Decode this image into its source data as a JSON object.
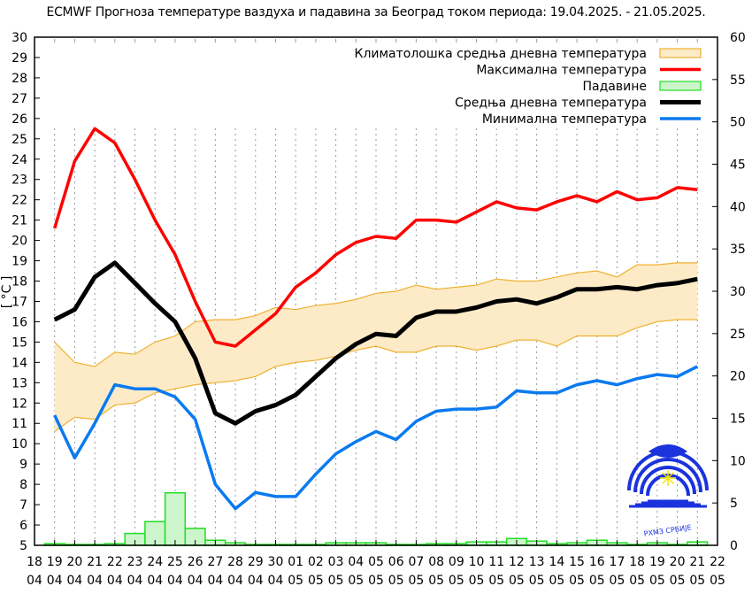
{
  "title": "ECMWF Прогноза температуре ваздуха и падавина за Београд током периода: 19.04.2025. - 21.05.2025.",
  "colors": {
    "max": "#ff0000",
    "mean": "#000000",
    "min": "#0a7af0",
    "clim_fill": "#fdebc8",
    "clim_edge": "#f0b030",
    "precip_fill": "#ccf5cc",
    "precip_edge": "#22dd22",
    "grid": "#9a9a9a",
    "logo": "#1a33dd"
  },
  "legend": {
    "items": [
      {
        "label": "Климатолошка средња дневна температура",
        "kind": "box",
        "fill": "#fdebc8",
        "edge": "#f0b030"
      },
      {
        "label": "Максимална температура",
        "kind": "line",
        "color": "#ff0000"
      },
      {
        "label": "Падавине",
        "kind": "box",
        "fill": "#ccf5cc",
        "edge": "#22dd22"
      },
      {
        "label": "Средња дневна температура",
        "kind": "line",
        "color": "#000000"
      },
      {
        "label": "Минимална температура",
        "kind": "line",
        "color": "#0a7af0"
      }
    ]
  },
  "logo": {
    "caption": "РХМЗ СРБИЈЕ",
    "icon": "rhmz-logo-icon"
  },
  "chart_data": {
    "type": "line",
    "title": "ECMWF Прогноза температуре ваздуха и падавина за Београд током периода: 19.04.2025. - 21.05.2025.",
    "xlabel": "",
    "ylabel": "[ °C ]",
    "y2label": "",
    "ylim": [
      5,
      30
    ],
    "y2lim": [
      0,
      60
    ],
    "yticks": [
      5,
      6,
      7,
      8,
      9,
      10,
      11,
      12,
      13,
      14,
      15,
      16,
      17,
      18,
      19,
      20,
      21,
      22,
      23,
      24,
      25,
      26,
      27,
      28,
      29,
      30
    ],
    "y2ticks": [
      0,
      5,
      10,
      15,
      20,
      25,
      30,
      35,
      40,
      45,
      50,
      55,
      60
    ],
    "xtick_labels": [
      [
        "18",
        "04"
      ],
      [
        "19",
        "04"
      ],
      [
        "20",
        "04"
      ],
      [
        "21",
        "04"
      ],
      [
        "22",
        "04"
      ],
      [
        "23",
        "04"
      ],
      [
        "24",
        "04"
      ],
      [
        "25",
        "04"
      ],
      [
        "26",
        "04"
      ],
      [
        "27",
        "04"
      ],
      [
        "28",
        "04"
      ],
      [
        "29",
        "04"
      ],
      [
        "30",
        "04"
      ],
      [
        "01",
        "05"
      ],
      [
        "02",
        "05"
      ],
      [
        "03",
        "05"
      ],
      [
        "04",
        "05"
      ],
      [
        "05",
        "05"
      ],
      [
        "06",
        "05"
      ],
      [
        "07",
        "05"
      ],
      [
        "08",
        "05"
      ],
      [
        "09",
        "05"
      ],
      [
        "10",
        "05"
      ],
      [
        "11",
        "05"
      ],
      [
        "12",
        "05"
      ],
      [
        "13",
        "05"
      ],
      [
        "14",
        "05"
      ],
      [
        "15",
        "05"
      ],
      [
        "16",
        "05"
      ],
      [
        "17",
        "05"
      ],
      [
        "18",
        "05"
      ],
      [
        "19",
        "05"
      ],
      [
        "20",
        "05"
      ],
      [
        "21",
        "05"
      ],
      [
        "22",
        "05"
      ]
    ],
    "categories": [
      "19.04",
      "20.04",
      "21.04",
      "22.04",
      "23.04",
      "24.04",
      "25.04",
      "26.04",
      "27.04",
      "28.04",
      "29.04",
      "30.04",
      "01.05",
      "02.05",
      "03.05",
      "04.05",
      "05.05",
      "06.05",
      "07.05",
      "08.05",
      "09.05",
      "10.05",
      "11.05",
      "12.05",
      "13.05",
      "14.05",
      "15.05",
      "16.05",
      "17.05",
      "18.05",
      "19.05",
      "20.05",
      "21.05"
    ],
    "grid": "vertical dotted at each day",
    "legend_position": "upper right",
    "series": [
      {
        "name": "Максимална температура",
        "axis": "left",
        "type": "line",
        "color": "#ff0000",
        "values": [
          20.6,
          23.9,
          25.5,
          24.8,
          23.0,
          21.0,
          19.3,
          17.0,
          15.0,
          14.8,
          15.6,
          16.4,
          17.7,
          18.4,
          19.3,
          19.9,
          20.2,
          20.1,
          21.0,
          21.0,
          20.9,
          21.4,
          21.9,
          21.6,
          21.5,
          21.9,
          22.2,
          21.9,
          22.4,
          22.0,
          22.1,
          22.6,
          22.5
        ]
      },
      {
        "name": "Средња дневна температура",
        "axis": "left",
        "type": "line",
        "color": "#000000",
        "values": [
          16.1,
          16.6,
          18.2,
          18.9,
          17.9,
          16.9,
          16.0,
          14.2,
          11.5,
          11.0,
          11.6,
          11.9,
          12.4,
          13.3,
          14.2,
          14.9,
          15.4,
          15.3,
          16.2,
          16.5,
          16.5,
          16.7,
          17.0,
          17.1,
          16.9,
          17.2,
          17.6,
          17.6,
          17.7,
          17.6,
          17.8,
          17.9,
          18.1
        ]
      },
      {
        "name": "Минимална температура",
        "axis": "left",
        "type": "line",
        "color": "#0a7af0",
        "values": [
          11.4,
          9.3,
          11.0,
          12.9,
          12.7,
          12.7,
          12.3,
          11.2,
          8.0,
          6.8,
          7.6,
          7.4,
          7.4,
          8.5,
          9.5,
          10.1,
          10.6,
          10.2,
          11.1,
          11.6,
          11.7,
          11.7,
          11.8,
          12.6,
          12.5,
          12.5,
          12.9,
          13.1,
          12.9,
          13.2,
          13.4,
          13.3,
          13.8
        ]
      },
      {
        "name": "Климатолошка средња дневна температура",
        "axis": "left",
        "type": "area-band",
        "color": "#f0b030",
        "upper": [
          15.0,
          14.0,
          13.8,
          14.5,
          14.4,
          15.0,
          15.3,
          16.0,
          16.1,
          16.1,
          16.3,
          16.7,
          16.6,
          16.8,
          16.9,
          17.1,
          17.4,
          17.5,
          17.8,
          17.6,
          17.7,
          17.8,
          18.1,
          18.0,
          18.0,
          18.2,
          18.4,
          18.5,
          18.2,
          18.8,
          18.8,
          18.9,
          18.9
        ],
        "lower": [
          10.6,
          11.3,
          11.2,
          11.9,
          12.0,
          12.5,
          12.7,
          12.9,
          13.0,
          13.1,
          13.3,
          13.8,
          14.0,
          14.1,
          14.3,
          14.6,
          14.8,
          14.5,
          14.5,
          14.8,
          14.8,
          14.6,
          14.8,
          15.1,
          15.1,
          14.8,
          15.3,
          15.3,
          15.3,
          15.7,
          16.0,
          16.1,
          16.1
        ]
      },
      {
        "name": "Падавине",
        "axis": "right",
        "type": "bar",
        "color": "#22dd22",
        "values": [
          0.2,
          0.0,
          0.0,
          0.2,
          1.4,
          2.8,
          6.2,
          2.0,
          0.6,
          0.3,
          0.1,
          0.1,
          0.1,
          0.1,
          0.3,
          0.3,
          0.3,
          0.1,
          0.0,
          0.2,
          0.2,
          0.4,
          0.4,
          0.8,
          0.5,
          0.2,
          0.3,
          0.6,
          0.3,
          0.1,
          0.3,
          0.1,
          0.4
        ]
      }
    ]
  }
}
